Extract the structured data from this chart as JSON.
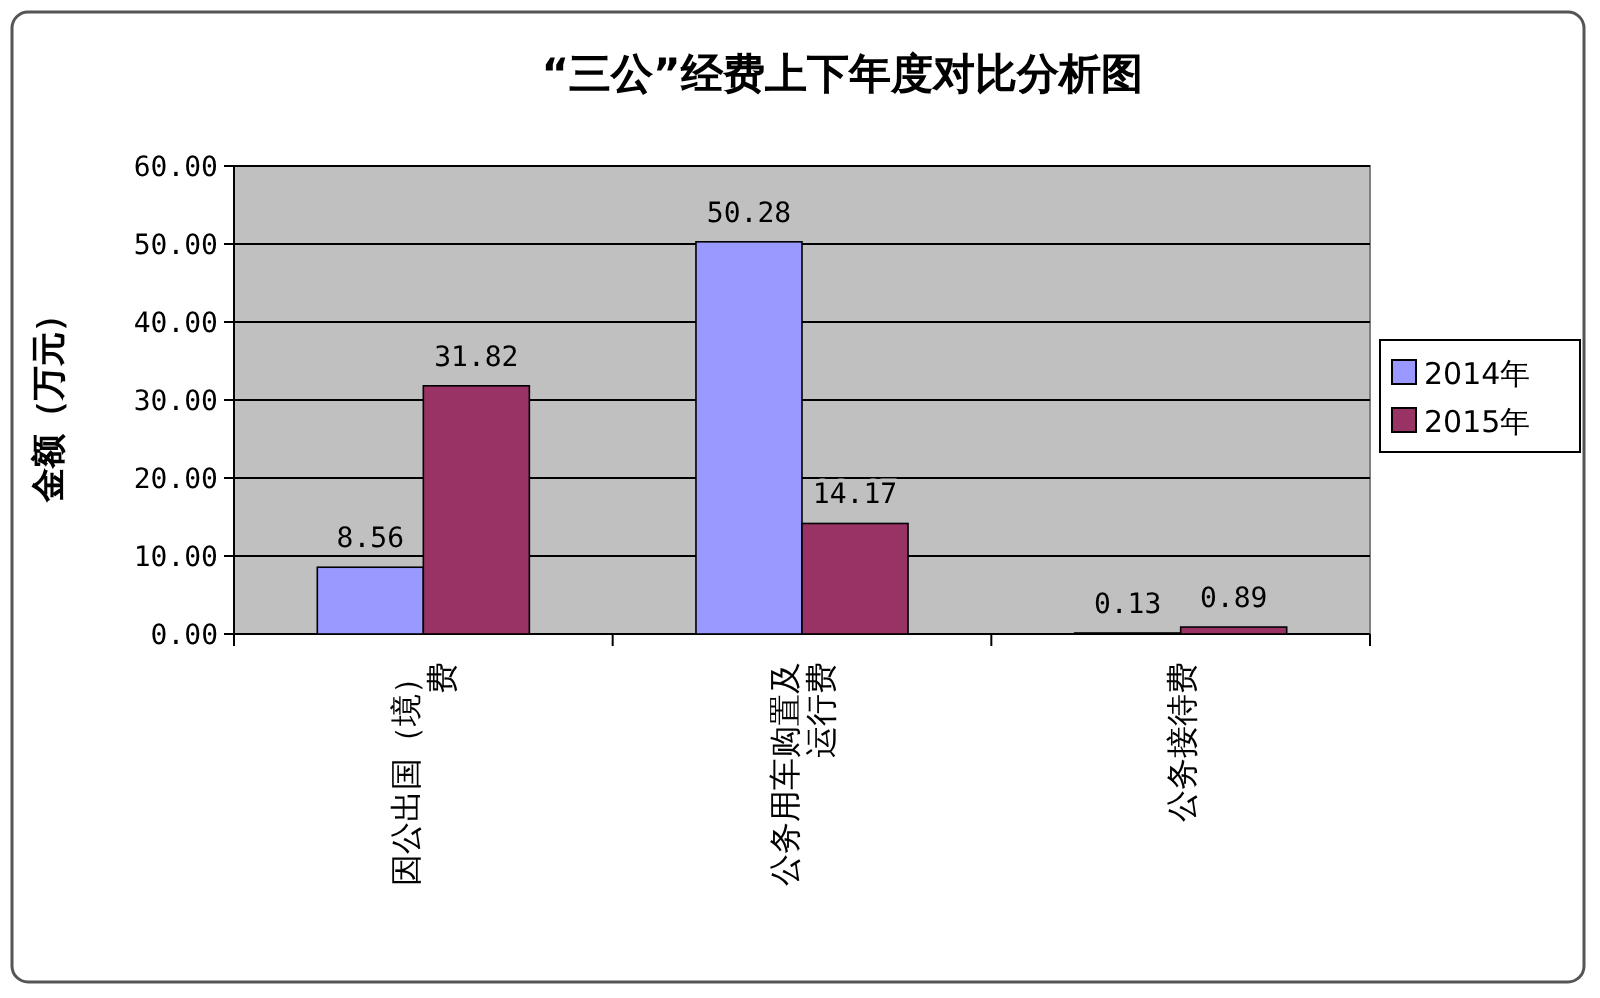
{
  "chart_data": {
    "type": "bar",
    "title": "“三公”经费上下年度对比分析图",
    "ylabel": "金额（万元）",
    "categories": [
      "因公出国（境）费",
      "公务用车购置及运行费",
      "公务接待费"
    ],
    "series": [
      {
        "name": "2014年",
        "color": "#9999ff",
        "values": [
          8.56,
          50.28,
          0.13
        ]
      },
      {
        "name": "2015年",
        "color": "#993366",
        "values": [
          31.82,
          14.17,
          0.89
        ]
      }
    ],
    "ylim": [
      0,
      60
    ],
    "yticks": [
      {
        "value": 0,
        "label": "0.00"
      },
      {
        "value": 10,
        "label": "10.00"
      },
      {
        "value": 20,
        "label": "20.00"
      },
      {
        "value": 30,
        "label": "30.00"
      },
      {
        "value": 40,
        "label": "40.00"
      },
      {
        "value": 50,
        "label": "50.00"
      },
      {
        "value": 60,
        "label": "60.00"
      }
    ],
    "grid": "y",
    "legend": "right",
    "data_labels": true
  }
}
